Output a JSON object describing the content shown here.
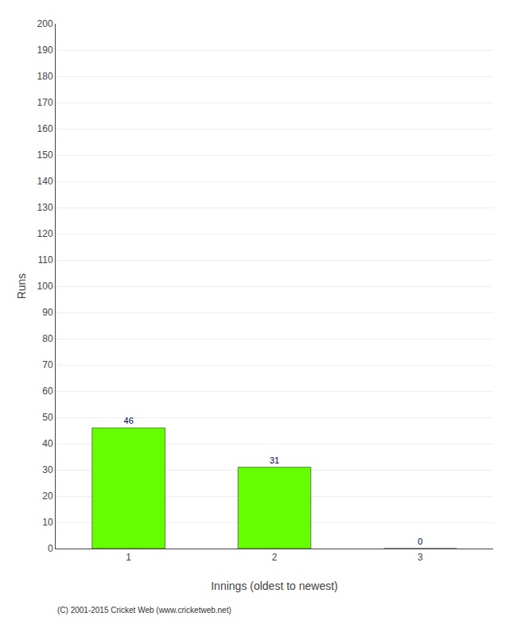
{
  "chart_data": {
    "type": "bar",
    "categories": [
      1,
      2,
      3
    ],
    "values": [
      46,
      31,
      0
    ],
    "color": "#66ff00",
    "xlabel": "Innings (oldest to newest)",
    "ylabel": "Runs",
    "ylim": [
      0,
      200
    ],
    "yticks": [
      0,
      10,
      20,
      30,
      40,
      50,
      60,
      70,
      80,
      90,
      100,
      110,
      120,
      130,
      140,
      150,
      160,
      170,
      180,
      190,
      200
    ],
    "grid": true,
    "data_labels": true,
    "annotations": [
      "(C) 2001-2015 Cricket Web (www.cricketweb.net)"
    ]
  }
}
